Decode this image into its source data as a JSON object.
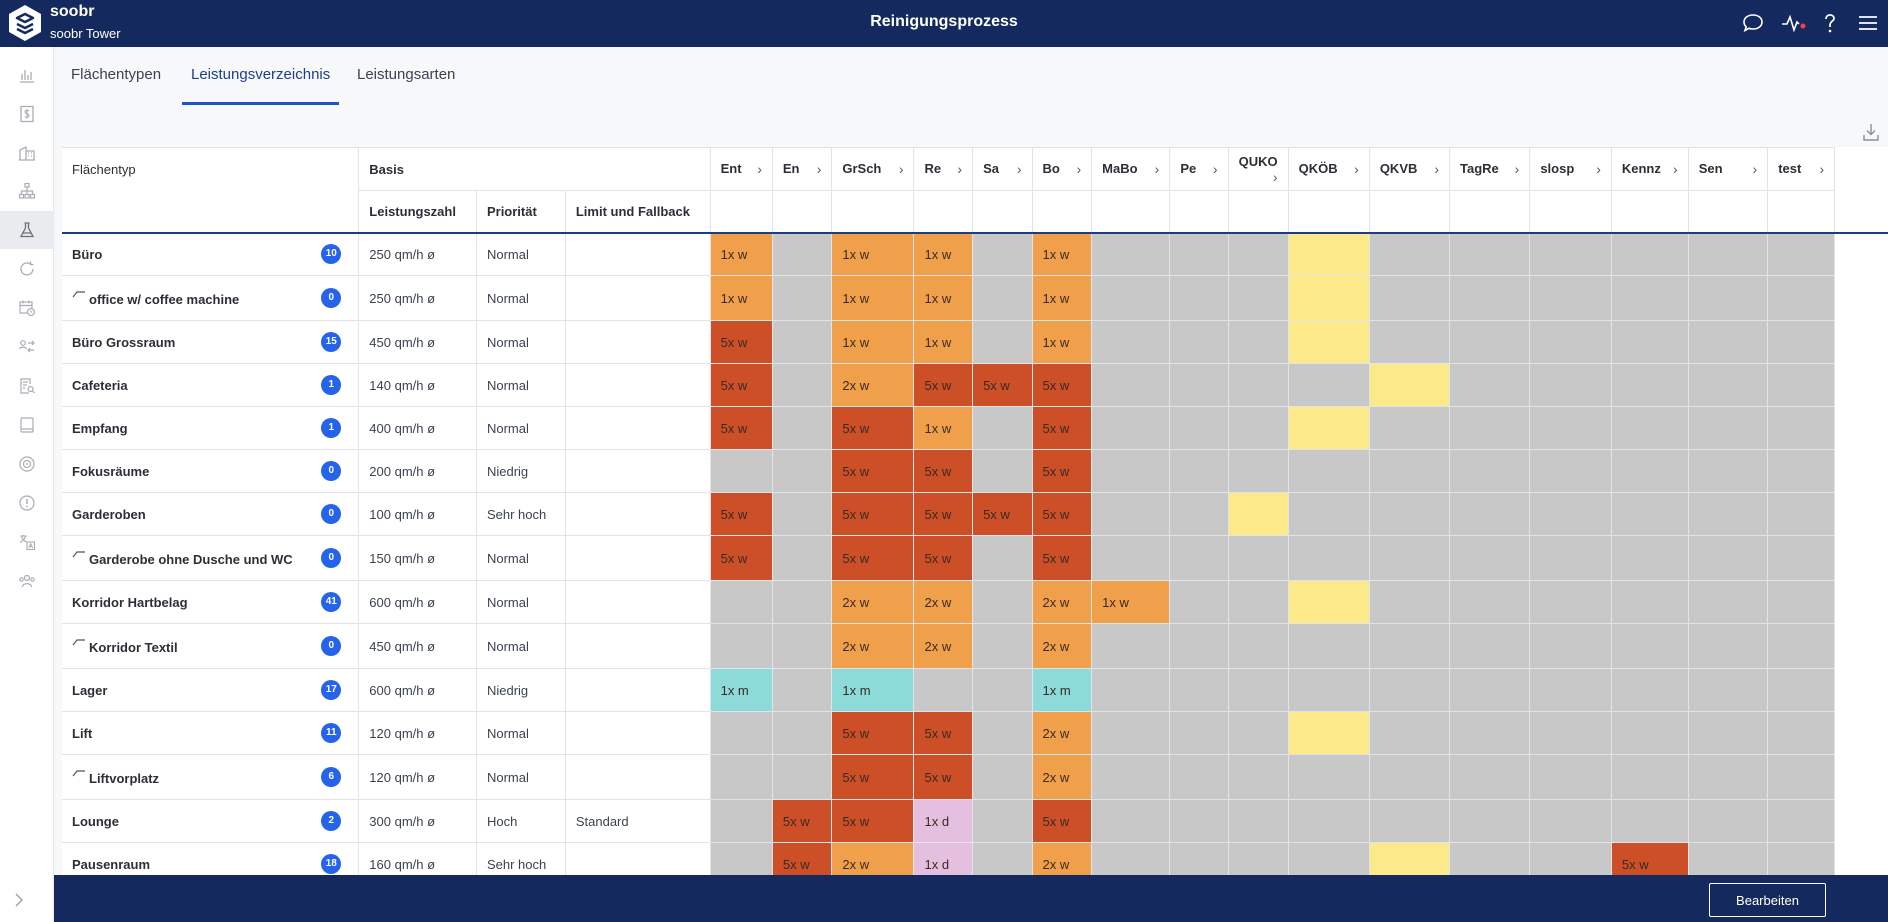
{
  "app": {
    "brand": "soobr",
    "site": "soobr Tower",
    "title": "Reinigungsprozess"
  },
  "topbar_icons": [
    "chat-icon",
    "activity-icon",
    "help-icon",
    "menu-icon"
  ],
  "sidebar_icons": [
    "bar-chart-icon",
    "dollar-document-icon",
    "building-icon",
    "hierarchy-icon",
    "flask-icon",
    "refresh-icon",
    "calendar-clock-icon",
    "user-swap-icon",
    "document-search-icon",
    "tablet-icon",
    "target-icon",
    "alert-icon",
    "translate-icon",
    "users-icon"
  ],
  "tabs": [
    {
      "label": "Flächentypen"
    },
    {
      "label": "Leistungsverzeichnis"
    },
    {
      "label": "Leistungsarten"
    }
  ],
  "table": {
    "col_flaechentyp": "Flächentyp",
    "group_basis": "Basis",
    "col_leistungszahl": "Leistungszahl",
    "col_prioritaet": "Priorität",
    "col_limit": "Limit und Fallback",
    "service_columns": [
      "Ent",
      "En",
      "GrSch",
      "Re",
      "Sa",
      "Bo",
      "MaBo",
      "Pe",
      "QUKO",
      "QKÖB",
      "QKVB",
      "TagRe",
      "slosp",
      "Kennz",
      "Sen",
      "test"
    ],
    "rows": [
      {
        "name": "Büro",
        "sub": false,
        "count": "10",
        "leistung": "250 qm/h ø",
        "prio": "Normal",
        "limit": "",
        "cells": [
          [
            "o",
            "1x w"
          ],
          [
            "g",
            ""
          ],
          [
            "o",
            "1x w"
          ],
          [
            "o",
            "1x w"
          ],
          [
            "g",
            ""
          ],
          [
            "o",
            "1x w"
          ],
          [
            "g",
            ""
          ],
          [
            "g",
            ""
          ],
          [
            "g",
            ""
          ],
          [
            "y",
            ""
          ],
          [
            "g",
            ""
          ],
          [
            "g",
            ""
          ],
          [
            "g",
            ""
          ],
          [
            "g",
            ""
          ],
          [
            "g",
            ""
          ],
          [
            "g",
            ""
          ]
        ]
      },
      {
        "name": "office w/ coffee machine",
        "sub": true,
        "count": "0",
        "leistung": "250 qm/h ø",
        "prio": "Normal",
        "limit": "",
        "cells": [
          [
            "o",
            "1x w"
          ],
          [
            "g",
            ""
          ],
          [
            "o",
            "1x w"
          ],
          [
            "o",
            "1x w"
          ],
          [
            "g",
            ""
          ],
          [
            "o",
            "1x w"
          ],
          [
            "g",
            ""
          ],
          [
            "g",
            ""
          ],
          [
            "g",
            ""
          ],
          [
            "y",
            ""
          ],
          [
            "g",
            ""
          ],
          [
            "g",
            ""
          ],
          [
            "g",
            ""
          ],
          [
            "g",
            ""
          ],
          [
            "g",
            ""
          ],
          [
            "g",
            ""
          ]
        ]
      },
      {
        "name": "Büro Grossraum",
        "sub": false,
        "count": "15",
        "leistung": "450 qm/h ø",
        "prio": "Normal",
        "limit": "",
        "cells": [
          [
            "r",
            "5x w"
          ],
          [
            "g",
            ""
          ],
          [
            "o",
            "1x w"
          ],
          [
            "o",
            "1x w"
          ],
          [
            "g",
            ""
          ],
          [
            "o",
            "1x w"
          ],
          [
            "g",
            ""
          ],
          [
            "g",
            ""
          ],
          [
            "g",
            ""
          ],
          [
            "y",
            ""
          ],
          [
            "g",
            ""
          ],
          [
            "g",
            ""
          ],
          [
            "g",
            ""
          ],
          [
            "g",
            ""
          ],
          [
            "g",
            ""
          ],
          [
            "g",
            ""
          ]
        ]
      },
      {
        "name": "Cafeteria",
        "sub": false,
        "count": "1",
        "leistung": "140 qm/h ø",
        "prio": "Normal",
        "limit": "",
        "cells": [
          [
            "r",
            "5x w"
          ],
          [
            "g",
            ""
          ],
          [
            "o",
            "2x w"
          ],
          [
            "r",
            "5x w"
          ],
          [
            "r",
            "5x w"
          ],
          [
            "r",
            "5x w"
          ],
          [
            "g",
            ""
          ],
          [
            "g",
            ""
          ],
          [
            "g",
            ""
          ],
          [
            "g",
            ""
          ],
          [
            "y",
            ""
          ],
          [
            "g",
            ""
          ],
          [
            "g",
            ""
          ],
          [
            "g",
            ""
          ],
          [
            "g",
            ""
          ],
          [
            "g",
            ""
          ]
        ]
      },
      {
        "name": "Empfang",
        "sub": false,
        "count": "1",
        "leistung": "400 qm/h ø",
        "prio": "Normal",
        "limit": "",
        "cells": [
          [
            "r",
            "5x w"
          ],
          [
            "g",
            ""
          ],
          [
            "r",
            "5x w"
          ],
          [
            "o",
            "1x w"
          ],
          [
            "g",
            ""
          ],
          [
            "r",
            "5x w"
          ],
          [
            "g",
            ""
          ],
          [
            "g",
            ""
          ],
          [
            "g",
            ""
          ],
          [
            "y",
            ""
          ],
          [
            "g",
            ""
          ],
          [
            "g",
            ""
          ],
          [
            "g",
            ""
          ],
          [
            "g",
            ""
          ],
          [
            "g",
            ""
          ],
          [
            "g",
            ""
          ]
        ]
      },
      {
        "name": "Fokusräume",
        "sub": false,
        "count": "0",
        "leistung": "200 qm/h ø",
        "prio": "Niedrig",
        "limit": "",
        "cells": [
          [
            "g",
            ""
          ],
          [
            "g",
            ""
          ],
          [
            "r",
            "5x w"
          ],
          [
            "r",
            "5x w"
          ],
          [
            "g",
            ""
          ],
          [
            "r",
            "5x w"
          ],
          [
            "g",
            ""
          ],
          [
            "g",
            ""
          ],
          [
            "g",
            ""
          ],
          [
            "g",
            ""
          ],
          [
            "g",
            ""
          ],
          [
            "g",
            ""
          ],
          [
            "g",
            ""
          ],
          [
            "g",
            ""
          ],
          [
            "g",
            ""
          ],
          [
            "g",
            ""
          ]
        ]
      },
      {
        "name": "Garderoben",
        "sub": false,
        "count": "0",
        "leistung": "100 qm/h ø",
        "prio": "Sehr hoch",
        "limit": "",
        "cells": [
          [
            "r",
            "5x w"
          ],
          [
            "g",
            ""
          ],
          [
            "r",
            "5x w"
          ],
          [
            "r",
            "5x w"
          ],
          [
            "r",
            "5x w"
          ],
          [
            "r",
            "5x w"
          ],
          [
            "g",
            ""
          ],
          [
            "g",
            ""
          ],
          [
            "y",
            ""
          ],
          [
            "g",
            ""
          ],
          [
            "g",
            ""
          ],
          [
            "g",
            ""
          ],
          [
            "g",
            ""
          ],
          [
            "g",
            ""
          ],
          [
            "g",
            ""
          ],
          [
            "g",
            ""
          ]
        ]
      },
      {
        "name": "Garderobe ohne Dusche und WC",
        "sub": true,
        "count": "0",
        "leistung": "150 qm/h ø",
        "prio": "Normal",
        "limit": "",
        "cells": [
          [
            "r",
            "5x w"
          ],
          [
            "g",
            ""
          ],
          [
            "r",
            "5x w"
          ],
          [
            "r",
            "5x w"
          ],
          [
            "g",
            ""
          ],
          [
            "r",
            "5x w"
          ],
          [
            "g",
            ""
          ],
          [
            "g",
            ""
          ],
          [
            "g",
            ""
          ],
          [
            "g",
            ""
          ],
          [
            "g",
            ""
          ],
          [
            "g",
            ""
          ],
          [
            "g",
            ""
          ],
          [
            "g",
            ""
          ],
          [
            "g",
            ""
          ],
          [
            "g",
            ""
          ]
        ]
      },
      {
        "name": "Korridor Hartbelag",
        "sub": false,
        "count": "41",
        "leistung": "600 qm/h ø",
        "prio": "Normal",
        "limit": "",
        "cells": [
          [
            "g",
            ""
          ],
          [
            "g",
            ""
          ],
          [
            "o",
            "2x w"
          ],
          [
            "o",
            "2x w"
          ],
          [
            "g",
            ""
          ],
          [
            "o",
            "2x w"
          ],
          [
            "o",
            "1x w"
          ],
          [
            "g",
            ""
          ],
          [
            "g",
            ""
          ],
          [
            "y",
            ""
          ],
          [
            "g",
            ""
          ],
          [
            "g",
            ""
          ],
          [
            "g",
            ""
          ],
          [
            "g",
            ""
          ],
          [
            "g",
            ""
          ],
          [
            "g",
            ""
          ]
        ]
      },
      {
        "name": "Korridor Textil",
        "sub": true,
        "count": "0",
        "leistung": "450 qm/h ø",
        "prio": "Normal",
        "limit": "",
        "cells": [
          [
            "g",
            ""
          ],
          [
            "g",
            ""
          ],
          [
            "o",
            "2x w"
          ],
          [
            "o",
            "2x w"
          ],
          [
            "g",
            ""
          ],
          [
            "o",
            "2x w"
          ],
          [
            "g",
            ""
          ],
          [
            "g",
            ""
          ],
          [
            "g",
            ""
          ],
          [
            "g",
            ""
          ],
          [
            "g",
            ""
          ],
          [
            "g",
            ""
          ],
          [
            "g",
            ""
          ],
          [
            "g",
            ""
          ],
          [
            "g",
            ""
          ],
          [
            "g",
            ""
          ]
        ]
      },
      {
        "name": "Lager",
        "sub": false,
        "count": "17",
        "leistung": "600 qm/h ø",
        "prio": "Niedrig",
        "limit": "",
        "cells": [
          [
            "t",
            "1x m"
          ],
          [
            "g",
            ""
          ],
          [
            "t",
            "1x m"
          ],
          [
            "g",
            ""
          ],
          [
            "g",
            ""
          ],
          [
            "t",
            "1x m"
          ],
          [
            "g",
            ""
          ],
          [
            "g",
            ""
          ],
          [
            "g",
            ""
          ],
          [
            "g",
            ""
          ],
          [
            "g",
            ""
          ],
          [
            "g",
            ""
          ],
          [
            "g",
            ""
          ],
          [
            "g",
            ""
          ],
          [
            "g",
            ""
          ],
          [
            "g",
            ""
          ]
        ]
      },
      {
        "name": "Lift",
        "sub": false,
        "count": "11",
        "leistung": "120 qm/h ø",
        "prio": "Normal",
        "limit": "",
        "cells": [
          [
            "g",
            ""
          ],
          [
            "g",
            ""
          ],
          [
            "r",
            "5x w"
          ],
          [
            "r",
            "5x w"
          ],
          [
            "g",
            ""
          ],
          [
            "o",
            "2x w"
          ],
          [
            "g",
            ""
          ],
          [
            "g",
            ""
          ],
          [
            "g",
            ""
          ],
          [
            "y",
            ""
          ],
          [
            "g",
            ""
          ],
          [
            "g",
            ""
          ],
          [
            "g",
            ""
          ],
          [
            "g",
            ""
          ],
          [
            "g",
            ""
          ],
          [
            "g",
            ""
          ]
        ]
      },
      {
        "name": "Liftvorplatz",
        "sub": true,
        "count": "6",
        "leistung": "120 qm/h ø",
        "prio": "Normal",
        "limit": "",
        "cells": [
          [
            "g",
            ""
          ],
          [
            "g",
            ""
          ],
          [
            "r",
            "5x w"
          ],
          [
            "r",
            "5x w"
          ],
          [
            "g",
            ""
          ],
          [
            "o",
            "2x w"
          ],
          [
            "g",
            ""
          ],
          [
            "g",
            ""
          ],
          [
            "g",
            ""
          ],
          [
            "g",
            ""
          ],
          [
            "g",
            ""
          ],
          [
            "g",
            ""
          ],
          [
            "g",
            ""
          ],
          [
            "g",
            ""
          ],
          [
            "g",
            ""
          ],
          [
            "g",
            ""
          ]
        ]
      },
      {
        "name": "Lounge",
        "sub": false,
        "count": "2",
        "leistung": "300 qm/h ø",
        "prio": "Hoch",
        "limit": "Standard",
        "cells": [
          [
            "g",
            ""
          ],
          [
            "r",
            "5x w"
          ],
          [
            "r",
            "5x w"
          ],
          [
            "p",
            "1x d"
          ],
          [
            "g",
            ""
          ],
          [
            "r",
            "5x w"
          ],
          [
            "g",
            ""
          ],
          [
            "g",
            ""
          ],
          [
            "g",
            ""
          ],
          [
            "g",
            ""
          ],
          [
            "g",
            ""
          ],
          [
            "g",
            ""
          ],
          [
            "g",
            ""
          ],
          [
            "g",
            ""
          ],
          [
            "g",
            ""
          ],
          [
            "g",
            ""
          ]
        ]
      },
      {
        "name": "Pausenraum",
        "sub": false,
        "count": "18",
        "leistung": "160 qm/h ø",
        "prio": "Sehr hoch",
        "limit": "",
        "cells": [
          [
            "g",
            ""
          ],
          [
            "r",
            "5x w"
          ],
          [
            "o",
            "2x w"
          ],
          [
            "p",
            "1x d"
          ],
          [
            "g",
            ""
          ],
          [
            "o",
            "2x w"
          ],
          [
            "g",
            ""
          ],
          [
            "g",
            ""
          ],
          [
            "g",
            ""
          ],
          [
            "g",
            ""
          ],
          [
            "y",
            ""
          ],
          [
            "g",
            ""
          ],
          [
            "g",
            ""
          ],
          [
            "r",
            "5x w"
          ],
          [
            "g",
            ""
          ],
          [
            "g",
            ""
          ]
        ]
      }
    ]
  },
  "footer": {
    "edit_label": "Bearbeiten"
  },
  "colors": {
    "navy": "#142a5e",
    "accent": "#1f55c7",
    "badge": "#2563eb",
    "orange": "#f0a04b",
    "red": "#cc4f28",
    "yellow": "#fbe98a",
    "teal": "#8ddbd9",
    "pink": "#e4bfe0",
    "gray": "#c8c8c8"
  }
}
